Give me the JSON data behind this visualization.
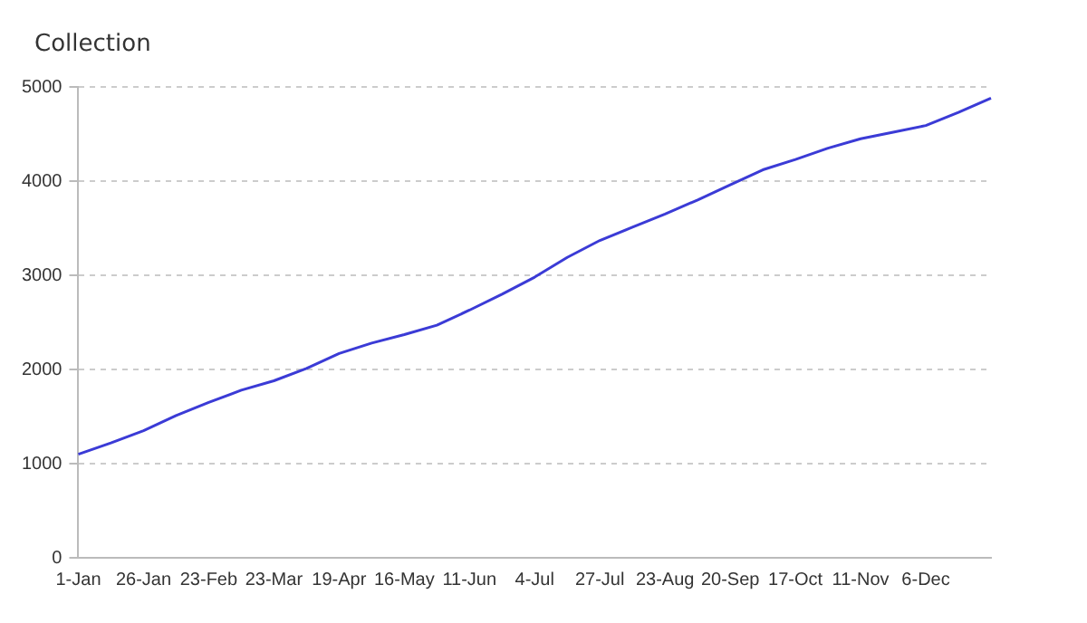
{
  "chart_data": {
    "type": "line",
    "title": "Collection",
    "categories": [
      "1-Jan",
      null,
      "26-Jan",
      null,
      "23-Feb",
      null,
      "23-Mar",
      null,
      "19-Apr",
      null,
      "16-May",
      null,
      "11-Jun",
      null,
      "4-Jul",
      null,
      "27-Jul",
      null,
      "23-Aug",
      null,
      "20-Sep",
      null,
      "17-Oct",
      null,
      "11-Nov",
      null,
      "6-Dec",
      null,
      null
    ],
    "series": [
      {
        "color": "#3b3bd6",
        "values": [
          1100,
          1220,
          1350,
          1510,
          1650,
          1780,
          1880,
          2010,
          2170,
          2280,
          2370,
          2470,
          2630,
          2800,
          2980,
          3190,
          3370,
          3510,
          3650,
          3800,
          3960,
          4120,
          4230,
          4350,
          4450,
          4520,
          4590,
          4730,
          4880
        ]
      }
    ],
    "ylim": [
      0,
      5000
    ],
    "yticks": [
      0,
      1000,
      2000,
      3000,
      4000,
      5000
    ],
    "grid": "y",
    "legend": false,
    "marker": "none",
    "line_style": "solid"
  }
}
